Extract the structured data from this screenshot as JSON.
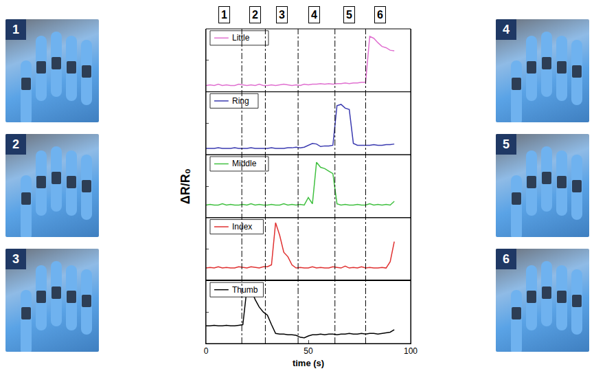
{
  "chart_data": {
    "type": "line",
    "x": [
      0,
      2,
      4,
      6,
      8,
      10,
      12,
      14,
      16,
      18,
      20,
      22,
      24,
      26,
      28,
      30,
      32,
      34,
      36,
      38,
      40,
      42,
      44,
      46,
      48,
      50,
      52,
      54,
      56,
      58,
      60,
      62,
      64,
      66,
      68,
      70,
      72,
      74,
      76,
      78,
      80,
      82,
      84,
      86,
      88,
      90,
      92
    ],
    "series": [
      {
        "name": "Little",
        "color": "#e070d0",
        "values": [
          0.1,
          0.11,
          0.1,
          0.12,
          0.1,
          0.11,
          0.1,
          0.1,
          0.12,
          0.11,
          0.1,
          0.11,
          0.1,
          0.12,
          0.1,
          0.1,
          0.11,
          0.1,
          0.11,
          0.12,
          0.11,
          0.1,
          0.11,
          0.1,
          0.12,
          0.11,
          0.12,
          0.12,
          0.13,
          0.12,
          0.13,
          0.12,
          0.13,
          0.13,
          0.14,
          0.13,
          0.14,
          0.14,
          0.15,
          0.15,
          0.88,
          0.85,
          0.78,
          0.72,
          0.7,
          0.66,
          0.65
        ]
      },
      {
        "name": "Ring",
        "color": "#3a3ab0",
        "values": [
          0.1,
          0.1,
          0.1,
          0.11,
          0.1,
          0.1,
          0.1,
          0.11,
          0.1,
          0.1,
          0.1,
          0.11,
          0.1,
          0.1,
          0.1,
          0.1,
          0.11,
          0.1,
          0.1,
          0.1,
          0.11,
          0.11,
          0.12,
          0.11,
          0.12,
          0.15,
          0.18,
          0.17,
          0.13,
          0.14,
          0.14,
          0.15,
          0.78,
          0.8,
          0.74,
          0.72,
          0.18,
          0.15,
          0.15,
          0.15,
          0.15,
          0.16,
          0.15,
          0.15,
          0.16,
          0.16,
          0.17
        ]
      },
      {
        "name": "Middle",
        "color": "#40c040",
        "values": [
          0.2,
          0.21,
          0.2,
          0.2,
          0.22,
          0.2,
          0.21,
          0.2,
          0.2,
          0.21,
          0.2,
          0.22,
          0.2,
          0.21,
          0.2,
          0.2,
          0.21,
          0.2,
          0.2,
          0.22,
          0.2,
          0.21,
          0.2,
          0.21,
          0.2,
          0.32,
          0.22,
          0.88,
          0.8,
          0.78,
          0.74,
          0.7,
          0.22,
          0.2,
          0.21,
          0.2,
          0.2,
          0.21,
          0.2,
          0.2,
          0.22,
          0.2,
          0.21,
          0.2,
          0.21,
          0.2,
          0.26
        ]
      },
      {
        "name": "Index",
        "color": "#e03030",
        "values": [
          0.2,
          0.21,
          0.2,
          0.22,
          0.2,
          0.21,
          0.2,
          0.2,
          0.22,
          0.21,
          0.2,
          0.22,
          0.21,
          0.2,
          0.22,
          0.22,
          0.25,
          0.92,
          0.72,
          0.45,
          0.38,
          0.25,
          0.2,
          0.21,
          0.2,
          0.2,
          0.22,
          0.2,
          0.21,
          0.2,
          0.2,
          0.22,
          0.21,
          0.2,
          0.23,
          0.2,
          0.21,
          0.2,
          0.22,
          0.2,
          0.21,
          0.2,
          0.2,
          0.21,
          0.2,
          0.3,
          0.62
        ]
      },
      {
        "name": "Thumb",
        "color": "#000000",
        "values": [
          0.28,
          0.28,
          0.29,
          0.28,
          0.28,
          0.29,
          0.28,
          0.28,
          0.29,
          0.3,
          0.88,
          0.86,
          0.7,
          0.58,
          0.5,
          0.45,
          0.3,
          0.16,
          0.15,
          0.15,
          0.14,
          0.14,
          0.13,
          0.1,
          0.09,
          0.12,
          0.14,
          0.14,
          0.15,
          0.14,
          0.15,
          0.15,
          0.14,
          0.15,
          0.15,
          0.16,
          0.15,
          0.15,
          0.16,
          0.15,
          0.16,
          0.16,
          0.15,
          0.16,
          0.17,
          0.18,
          0.22
        ]
      }
    ],
    "x_label": "time (s)",
    "y_label": "ΔR/R₀",
    "xlim": [
      0,
      100
    ],
    "xticks": [
      0,
      50,
      100
    ],
    "ylim": [
      0,
      1
    ],
    "tick_labels": "x",
    "grid": false,
    "dividers": [
      17.5,
      29,
      45,
      63,
      78
    ],
    "phases": [
      {
        "label": "1",
        "x": 9
      },
      {
        "label": "2",
        "x": 24
      },
      {
        "label": "3",
        "x": 37
      },
      {
        "label": "4",
        "x": 53
      },
      {
        "label": "5",
        "x": 70
      },
      {
        "label": "6",
        "x": 85
      }
    ]
  },
  "photos": {
    "left": [
      "1",
      "2",
      "3"
    ],
    "right": [
      "4",
      "5",
      "6"
    ]
  }
}
